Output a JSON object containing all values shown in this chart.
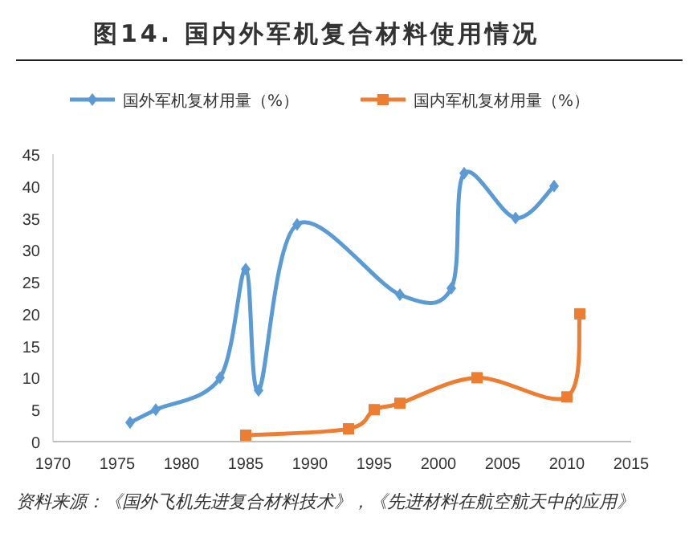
{
  "chart_data": {
    "type": "line",
    "title": "图14. 国内外军机复合材料使用情况",
    "xlim": [
      1970,
      2015
    ],
    "xticks": [
      1970,
      1975,
      1980,
      1985,
      1990,
      1995,
      2000,
      2005,
      2010,
      2015
    ],
    "ylim": [
      0,
      45
    ],
    "yticks": [
      0,
      5,
      10,
      15,
      20,
      25,
      30,
      35,
      40,
      45
    ],
    "legend": "top",
    "line_style": "solid",
    "series": [
      {
        "name": "国外军机复材用量（%）",
        "color": "#5b9bd5",
        "marker": "diamond",
        "x": [
          1976,
          1978,
          1983,
          1985,
          1986,
          1989,
          1997,
          2001,
          2002,
          2006,
          2009
        ],
        "values": [
          3,
          5,
          10,
          27,
          8,
          34,
          23,
          24,
          42,
          35,
          40
        ]
      },
      {
        "name": "国内军机复材用量（%）",
        "color": "#ed7d31",
        "marker": "square",
        "x": [
          1985,
          1993,
          1995,
          1997,
          2003,
          2010,
          2011
        ],
        "values": [
          1,
          2,
          5,
          6,
          10,
          7,
          20
        ]
      }
    ],
    "annotations": [
      "资料来源：《国外飞机先进复合材料技术》，《先进材料在航空航天中的应用》"
    ]
  }
}
